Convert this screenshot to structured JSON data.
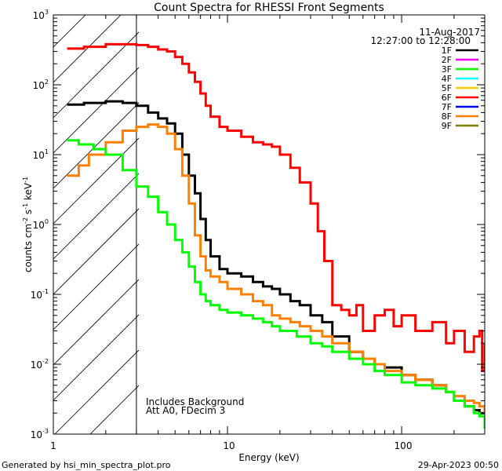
{
  "chart_data": {
    "type": "line",
    "title": "Count Spectra for RHESSI Front Segments",
    "xlabel": "Energy (keV)",
    "ylabel_parts": {
      "counts": "counts cm",
      "exp1": "-2",
      "s": " s",
      "exp2": "-1",
      "kev": " keV",
      "exp3": "-1"
    },
    "xscale": "log",
    "yscale": "log",
    "xlim": [
      1,
      300
    ],
    "ylim": [
      0.001,
      1000
    ],
    "x_tick_labels": [
      "1",
      "10",
      "100"
    ],
    "y_tick_labels": [
      {
        "base": "10",
        "exp": "3",
        "value": 1000
      },
      {
        "base": "10",
        "exp": "2",
        "value": 100
      },
      {
        "base": "10",
        "exp": "1",
        "value": 10
      },
      {
        "base": "10",
        "exp": "0",
        "value": 1
      },
      {
        "base": "10",
        "exp": "-1",
        "value": 0.1
      },
      {
        "base": "10",
        "exp": "-2",
        "value": 0.01
      },
      {
        "base": "10",
        "exp": "-3",
        "value": 0.001
      }
    ],
    "date_label": "11-Aug-2017",
    "time_label": "12:27:00 to 12:28:00",
    "attenuator_threshold_kev": 3,
    "annotations": [
      "Includes Background",
      "Att A0, FDecim 3"
    ],
    "legend": [
      {
        "name": "1F",
        "color": "#000000"
      },
      {
        "name": "2F",
        "color": "#ff00ff"
      },
      {
        "name": "3F",
        "color": "#00ff00"
      },
      {
        "name": "4F",
        "color": "#00ffff"
      },
      {
        "name": "5F",
        "color": "#ffc800"
      },
      {
        "name": "6F",
        "color": "#ff0000"
      },
      {
        "name": "7F",
        "color": "#0000ff"
      },
      {
        "name": "8F",
        "color": "#ff8000"
      },
      {
        "name": "9F",
        "color": "#808000"
      }
    ],
    "series": [
      {
        "name": "6F",
        "color": "#ff0000",
        "x": [
          1.2,
          1.5,
          2,
          2.5,
          3,
          3.5,
          4,
          4.5,
          5,
          5.5,
          6,
          6.5,
          7,
          7.5,
          8,
          9,
          10,
          12,
          14,
          16,
          18,
          20,
          23,
          26,
          30,
          33,
          36,
          40,
          45,
          50,
          55,
          60,
          70,
          80,
          90,
          100,
          120,
          150,
          180,
          200,
          230,
          260,
          280,
          290,
          300
        ],
        "y": [
          330,
          350,
          380,
          380,
          370,
          350,
          320,
          300,
          250,
          200,
          150,
          110,
          75,
          50,
          35,
          25,
          22,
          18,
          15,
          14,
          13,
          10,
          6.5,
          4,
          2,
          0.8,
          0.3,
          0.07,
          0.06,
          0.05,
          0.07,
          0.03,
          0.05,
          0.06,
          0.035,
          0.05,
          0.03,
          0.04,
          0.02,
          0.03,
          0.015,
          0.025,
          0.03,
          0.008,
          0.02
        ]
      },
      {
        "name": "1F",
        "color": "#000000",
        "x": [
          1.2,
          1.5,
          2,
          2.5,
          3,
          3.5,
          4,
          4.5,
          5,
          5.5,
          6,
          6.5,
          7,
          7.5,
          8,
          9,
          10,
          12,
          14,
          16,
          18,
          20,
          23,
          26,
          30,
          35,
          40,
          50,
          60,
          70,
          80,
          100,
          120,
          150,
          180,
          200,
          230,
          260,
          280,
          300
        ],
        "y": [
          52,
          55,
          58,
          55,
          50,
          40,
          33,
          28,
          20,
          10,
          5,
          2.8,
          1.2,
          0.6,
          0.35,
          0.23,
          0.2,
          0.18,
          0.15,
          0.13,
          0.12,
          0.1,
          0.08,
          0.07,
          0.05,
          0.04,
          0.025,
          0.015,
          0.012,
          0.01,
          0.009,
          0.007,
          0.006,
          0.005,
          0.004,
          0.003,
          0.0025,
          0.0022,
          0.002,
          0.0025
        ]
      },
      {
        "name": "8F",
        "color": "#ff8000",
        "x": [
          1.2,
          1.4,
          1.6,
          2,
          2.5,
          3,
          3.5,
          4,
          4.5,
          5,
          5.5,
          6,
          6.5,
          7,
          7.5,
          8,
          9,
          10,
          12,
          14,
          16,
          18,
          20,
          23,
          26,
          30,
          35,
          40,
          50,
          60,
          70,
          80,
          100,
          120,
          150,
          180,
          200,
          230,
          260,
          280,
          300
        ],
        "y": [
          5,
          7,
          10,
          15,
          22,
          25,
          27,
          25,
          20,
          12,
          5,
          2,
          0.7,
          0.35,
          0.22,
          0.18,
          0.15,
          0.12,
          0.1,
          0.08,
          0.07,
          0.05,
          0.045,
          0.04,
          0.035,
          0.03,
          0.025,
          0.02,
          0.015,
          0.012,
          0.01,
          0.008,
          0.007,
          0.006,
          0.005,
          0.004,
          0.0035,
          0.003,
          0.0028,
          0.0025,
          0.002
        ]
      },
      {
        "name": "3F",
        "color": "#00ff00",
        "x": [
          1.2,
          1.4,
          1.7,
          2,
          2.5,
          3,
          3.5,
          4,
          4.5,
          5,
          5.5,
          6,
          6.5,
          7,
          7.5,
          8,
          9,
          10,
          12,
          14,
          16,
          18,
          20,
          25,
          30,
          35,
          40,
          50,
          60,
          70,
          80,
          100,
          120,
          150,
          180,
          200,
          230,
          260,
          280,
          300
        ],
        "y": [
          16,
          14,
          12,
          10,
          6,
          3.5,
          2.5,
          1.5,
          1,
          0.6,
          0.4,
          0.25,
          0.15,
          0.1,
          0.08,
          0.07,
          0.06,
          0.055,
          0.05,
          0.045,
          0.04,
          0.035,
          0.03,
          0.025,
          0.02,
          0.018,
          0.015,
          0.012,
          0.01,
          0.008,
          0.007,
          0.0055,
          0.005,
          0.0045,
          0.004,
          0.003,
          0.0025,
          0.002,
          0.0018,
          0.0012
        ]
      }
    ]
  },
  "footer": {
    "generated_by": "Generated by hsi_min_spectra_plot.pro",
    "timestamp": "29-Apr-2023 00:50"
  }
}
